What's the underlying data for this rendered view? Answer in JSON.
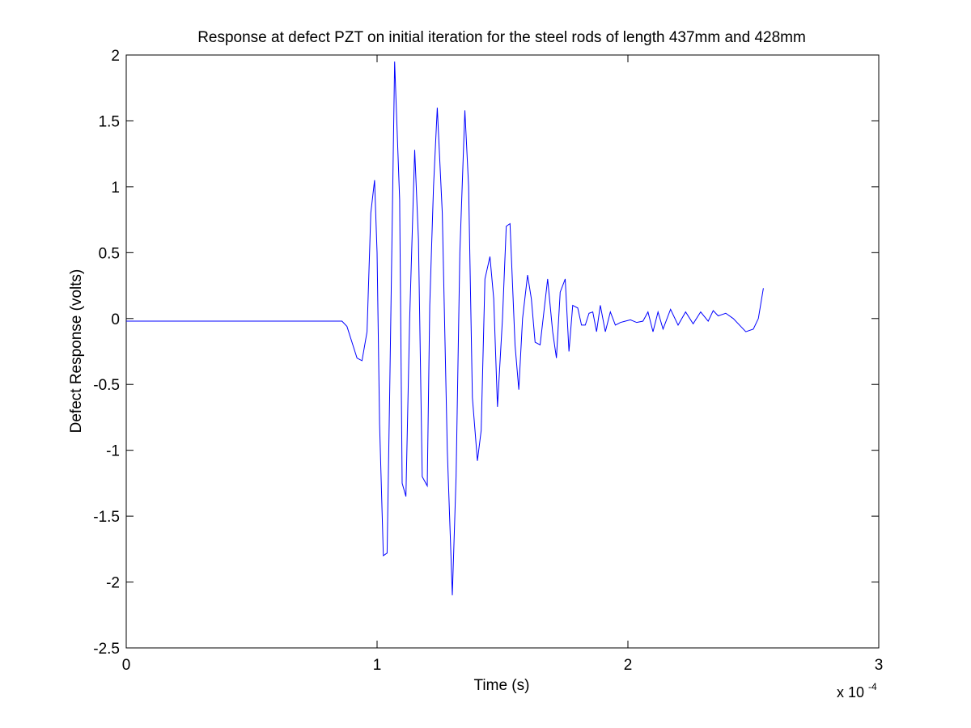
{
  "chart_data": {
    "type": "line",
    "title": "Response at defect PZT on initial iteration for the steel rods of length 437mm and 428mm",
    "xlabel": "Time (s)",
    "ylabel": "Defect Response (volts)",
    "x_multiplier_base": "x 10",
    "x_multiplier_exponent": "-4",
    "xlim": [
      0,
      3
    ],
    "ylim": [
      -2.5,
      2
    ],
    "x_ticks": [
      0,
      1,
      2,
      3
    ],
    "x_tick_labels": [
      "0",
      "1",
      "2",
      "3"
    ],
    "y_ticks": [
      -2.5,
      -2,
      -1.5,
      -1,
      -0.5,
      0,
      0.5,
      1,
      1.5,
      2
    ],
    "y_tick_labels": [
      "-2.5",
      "-2",
      "-1.5",
      "-1",
      "-0.5",
      "0",
      "0.5",
      "1",
      "1.5",
      "2"
    ],
    "grid": false,
    "line_color": "#0000ff",
    "series": [
      {
        "x": [
          0,
          0.86,
          0.88,
          0.9,
          0.92,
          0.94,
          0.96,
          0.975,
          0.99,
          1.0,
          1.01,
          1.025,
          1.04,
          1.05,
          1.07,
          1.09,
          1.1,
          1.115,
          1.13,
          1.15,
          1.165,
          1.18,
          1.2,
          1.21,
          1.225,
          1.24,
          1.26,
          1.28,
          1.3,
          1.315,
          1.33,
          1.35,
          1.365,
          1.38,
          1.4,
          1.415,
          1.43,
          1.45,
          1.465,
          1.48,
          1.5,
          1.515,
          1.53,
          1.55,
          1.565,
          1.58,
          1.6,
          1.615,
          1.63,
          1.65,
          1.665,
          1.68,
          1.7,
          1.715,
          1.73,
          1.75,
          1.765,
          1.78,
          1.8,
          1.815,
          1.83,
          1.845,
          1.86,
          1.875,
          1.89,
          1.91,
          1.93,
          1.95,
          1.97,
          1.99,
          2.01,
          2.035,
          2.06,
          2.08,
          2.1,
          2.12,
          2.14,
          2.17,
          2.2,
          2.23,
          2.26,
          2.29,
          2.32,
          2.34,
          2.36,
          2.39,
          2.42,
          2.45,
          2.47,
          2.5,
          2.52,
          2.54,
          2.56,
          2.58,
          2.6,
          2.62,
          2.64,
          2.66,
          2.68
        ],
        "y": [
          -0.02,
          -0.02,
          -0.06,
          -0.18,
          -0.3,
          -0.32,
          -0.1,
          0.8,
          1.05,
          0.5,
          -0.8,
          -1.8,
          -1.78,
          -0.6,
          1.95,
          0.9,
          -1.25,
          -1.35,
          0.0,
          1.28,
          0.6,
          -1.2,
          -1.27,
          0.1,
          1.0,
          1.6,
          0.8,
          -1.0,
          -2.1,
          -1.2,
          0.5,
          1.58,
          1.0,
          -0.6,
          -1.08,
          -0.85,
          0.3,
          0.47,
          0.15,
          -0.67,
          0.0,
          0.7,
          0.72,
          -0.2,
          -0.54,
          0.0,
          0.33,
          0.15,
          -0.18,
          -0.2,
          0.05,
          0.3,
          -0.1,
          -0.3,
          0.2,
          0.3,
          -0.25,
          0.1,
          0.08,
          -0.05,
          -0.05,
          0.04,
          0.05,
          -0.1,
          0.1,
          -0.1,
          0.05,
          -0.05,
          -0.03,
          -0.02,
          -0.01,
          -0.03,
          -0.02,
          0.05,
          -0.1,
          0.05,
          -0.08,
          0.07,
          -0.05,
          0.05,
          -0.04,
          0.05,
          -0.02,
          0.06,
          0.02,
          0.04,
          0.0,
          -0.06,
          -0.1,
          -0.08,
          0.0,
          0.23,
          0.23,
          0.23,
          0.23,
          0.23,
          0.23,
          0.23,
          0.23
        ]
      }
    ]
  }
}
